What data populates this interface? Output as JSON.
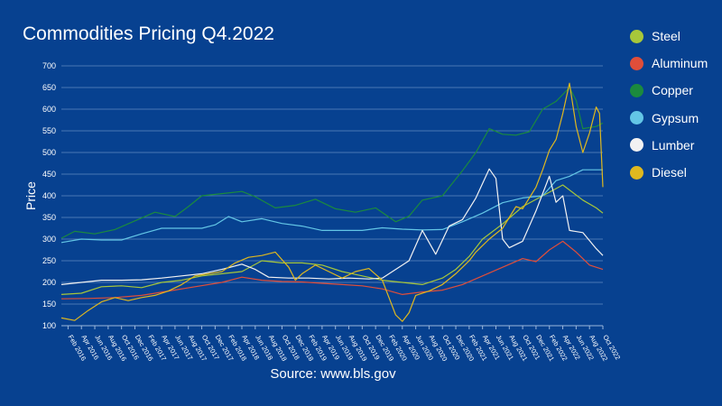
{
  "chart_data": {
    "type": "line",
    "title": "Commodities Pricing Q4.2022",
    "xlabel": "",
    "ylabel": "Price",
    "source": "Source: www.bls.gov",
    "ylim": [
      100,
      700
    ],
    "yticks": [
      100,
      150,
      200,
      250,
      300,
      350,
      400,
      450,
      500,
      550,
      600,
      650,
      700
    ],
    "grid": true,
    "legend_position": "right",
    "x_tick_labels": [
      "Feb 2016",
      "Apr 2016",
      "Jun 2016",
      "Aug 2016",
      "Oct 2016",
      "Dec 2016",
      "Feb 2017",
      "Apr 2017",
      "Jun 2017",
      "Aug 2017",
      "Oct 2017",
      "Dec 2017",
      "Feb 2018",
      "Apr 2018",
      "Jun 2018",
      "Aug 2018",
      "Oct 2018",
      "Dec 2018",
      "Feb 2019",
      "Apr 2019",
      "Jun 2019",
      "Aug 2019",
      "Oct 2019",
      "Dec 2019",
      "Feb 2020",
      "Apr 2020",
      "Jun 2020",
      "Aug 2020",
      "Oct 2020",
      "Dec 2020",
      "Feb 2021",
      "Apr 2021",
      "Jun 2021",
      "Aug 2021",
      "Oct 2021",
      "Dec 2021",
      "Feb 2022",
      "Apr 2022",
      "Jun 2022",
      "Aug 2022",
      "Oct 2022"
    ],
    "x_tick_months": [
      1,
      3,
      5,
      7,
      9,
      11,
      13,
      15,
      17,
      19,
      21,
      23,
      25,
      27,
      29,
      31,
      33,
      35,
      37,
      39,
      41,
      43,
      45,
      47,
      49,
      51,
      53,
      55,
      57,
      59,
      61,
      63,
      65,
      67,
      69,
      71,
      73,
      75,
      77,
      79,
      81
    ],
    "x_range": [
      0,
      81
    ],
    "series": [
      {
        "name": "Steel",
        "color": "#a7c73a",
        "points": [
          [
            0,
            172
          ],
          [
            3,
            175
          ],
          [
            6,
            190
          ],
          [
            9,
            192
          ],
          [
            12,
            188
          ],
          [
            15,
            200
          ],
          [
            18,
            205
          ],
          [
            21,
            215
          ],
          [
            24,
            220
          ],
          [
            27,
            225
          ],
          [
            30,
            250
          ],
          [
            33,
            245
          ],
          [
            36,
            245
          ],
          [
            39,
            240
          ],
          [
            42,
            225
          ],
          [
            45,
            215
          ],
          [
            48,
            205
          ],
          [
            51,
            200
          ],
          [
            54,
            195
          ],
          [
            57,
            210
          ],
          [
            59,
            230
          ],
          [
            61,
            260
          ],
          [
            63,
            300
          ],
          [
            66,
            335
          ],
          [
            69,
            375
          ],
          [
            72,
            400
          ],
          [
            75,
            425
          ],
          [
            78,
            390
          ],
          [
            80,
            372
          ],
          [
            81,
            360
          ]
        ]
      },
      {
        "name": "Aluminum",
        "color": "#e04e3a",
        "points": [
          [
            0,
            162
          ],
          [
            4,
            163
          ],
          [
            8,
            165
          ],
          [
            12,
            170
          ],
          [
            16,
            180
          ],
          [
            20,
            190
          ],
          [
            24,
            200
          ],
          [
            27,
            212
          ],
          [
            30,
            205
          ],
          [
            33,
            202
          ],
          [
            36,
            201
          ],
          [
            39,
            198
          ],
          [
            42,
            195
          ],
          [
            45,
            192
          ],
          [
            48,
            185
          ],
          [
            51,
            172
          ],
          [
            54,
            178
          ],
          [
            57,
            182
          ],
          [
            60,
            195
          ],
          [
            63,
            215
          ],
          [
            66,
            235
          ],
          [
            69,
            255
          ],
          [
            71,
            248
          ],
          [
            73,
            275
          ],
          [
            75,
            295
          ],
          [
            77,
            270
          ],
          [
            79,
            240
          ],
          [
            81,
            230
          ]
        ]
      },
      {
        "name": "Copper",
        "color": "#1b8a3e",
        "points": [
          [
            0,
            302
          ],
          [
            2,
            318
          ],
          [
            5,
            312
          ],
          [
            8,
            322
          ],
          [
            11,
            342
          ],
          [
            14,
            362
          ],
          [
            17,
            352
          ],
          [
            19,
            375
          ],
          [
            21,
            400
          ],
          [
            24,
            405
          ],
          [
            27,
            410
          ],
          [
            29,
            398
          ],
          [
            32,
            372
          ],
          [
            35,
            378
          ],
          [
            38,
            392
          ],
          [
            41,
            370
          ],
          [
            44,
            362
          ],
          [
            47,
            372
          ],
          [
            50,
            340
          ],
          [
            52,
            353
          ],
          [
            54,
            390
          ],
          [
            57,
            400
          ],
          [
            60,
            458
          ],
          [
            62,
            500
          ],
          [
            64,
            555
          ],
          [
            66,
            542
          ],
          [
            68,
            540
          ],
          [
            70,
            548
          ],
          [
            72,
            600
          ],
          [
            74,
            618
          ],
          [
            76,
            650
          ],
          [
            77,
            620
          ],
          [
            78,
            555
          ],
          [
            80,
            560
          ],
          [
            81,
            568
          ]
        ]
      },
      {
        "name": "Gypsum",
        "color": "#63c6e6",
        "points": [
          [
            0,
            292
          ],
          [
            3,
            300
          ],
          [
            6,
            298
          ],
          [
            9,
            298
          ],
          [
            12,
            312
          ],
          [
            15,
            325
          ],
          [
            18,
            325
          ],
          [
            21,
            325
          ],
          [
            23,
            333
          ],
          [
            25,
            352
          ],
          [
            27,
            340
          ],
          [
            30,
            347
          ],
          [
            33,
            336
          ],
          [
            36,
            330
          ],
          [
            39,
            320
          ],
          [
            42,
            320
          ],
          [
            45,
            320
          ],
          [
            48,
            326
          ],
          [
            51,
            323
          ],
          [
            54,
            321
          ],
          [
            57,
            322
          ],
          [
            60,
            340
          ],
          [
            63,
            360
          ],
          [
            66,
            384
          ],
          [
            69,
            395
          ],
          [
            72,
            400
          ],
          [
            74,
            435
          ],
          [
            76,
            445
          ],
          [
            78,
            460
          ],
          [
            81,
            460
          ]
        ]
      },
      {
        "name": "Lumber",
        "color": "#f2f2f2",
        "points": [
          [
            0,
            195
          ],
          [
            3,
            200
          ],
          [
            6,
            205
          ],
          [
            9,
            205
          ],
          [
            12,
            206
          ],
          [
            15,
            210
          ],
          [
            18,
            215
          ],
          [
            21,
            220
          ],
          [
            24,
            230
          ],
          [
            27,
            242
          ],
          [
            29,
            230
          ],
          [
            31,
            212
          ],
          [
            34,
            210
          ],
          [
            37,
            210
          ],
          [
            40,
            208
          ],
          [
            43,
            210
          ],
          [
            46,
            208
          ],
          [
            48,
            210
          ],
          [
            50,
            230
          ],
          [
            52,
            250
          ],
          [
            54,
            320
          ],
          [
            56,
            265
          ],
          [
            58,
            330
          ],
          [
            60,
            345
          ],
          [
            62,
            395
          ],
          [
            64,
            462
          ],
          [
            65,
            440
          ],
          [
            66,
            300
          ],
          [
            67,
            280
          ],
          [
            69,
            295
          ],
          [
            71,
            365
          ],
          [
            73,
            445
          ],
          [
            74,
            385
          ],
          [
            75,
            400
          ],
          [
            76,
            320
          ],
          [
            78,
            315
          ],
          [
            80,
            278
          ],
          [
            81,
            262
          ]
        ]
      },
      {
        "name": "Diesel",
        "color": "#dfb81f",
        "points": [
          [
            0,
            118
          ],
          [
            2,
            112
          ],
          [
            4,
            135
          ],
          [
            6,
            155
          ],
          [
            8,
            165
          ],
          [
            10,
            158
          ],
          [
            12,
            165
          ],
          [
            14,
            170
          ],
          [
            16,
            180
          ],
          [
            18,
            195
          ],
          [
            20,
            215
          ],
          [
            22,
            220
          ],
          [
            24,
            225
          ],
          [
            26,
            245
          ],
          [
            28,
            258
          ],
          [
            30,
            262
          ],
          [
            32,
            270
          ],
          [
            34,
            235
          ],
          [
            35,
            205
          ],
          [
            36,
            220
          ],
          [
            38,
            240
          ],
          [
            40,
            225
          ],
          [
            42,
            210
          ],
          [
            44,
            225
          ],
          [
            46,
            232
          ],
          [
            48,
            205
          ],
          [
            49,
            165
          ],
          [
            50,
            125
          ],
          [
            51,
            110
          ],
          [
            52,
            130
          ],
          [
            53,
            170
          ],
          [
            55,
            180
          ],
          [
            57,
            195
          ],
          [
            59,
            220
          ],
          [
            61,
            250
          ],
          [
            62,
            270
          ],
          [
            63,
            285
          ],
          [
            64,
            300
          ],
          [
            66,
            325
          ],
          [
            68,
            375
          ],
          [
            69,
            370
          ],
          [
            70,
            395
          ],
          [
            71,
            420
          ],
          [
            72,
            460
          ],
          [
            73,
            505
          ],
          [
            74,
            530
          ],
          [
            75,
            590
          ],
          [
            76,
            660
          ],
          [
            77,
            560
          ],
          [
            78,
            500
          ],
          [
            79,
            545
          ],
          [
            80,
            605
          ],
          [
            80.5,
            590
          ],
          [
            81,
            420
          ]
        ]
      }
    ]
  }
}
